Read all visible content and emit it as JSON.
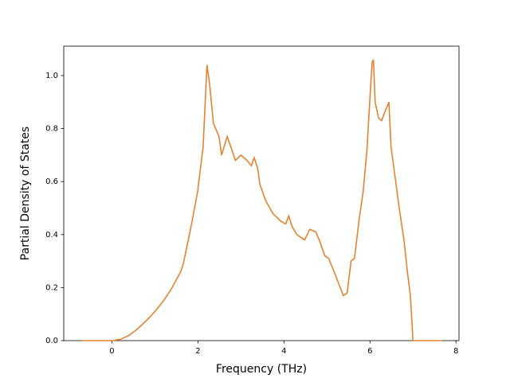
{
  "chart_data": {
    "type": "line",
    "xlabel": "Frequency (THz)",
    "ylabel": "Partial Density of States",
    "x": [
      -0.7,
      0,
      0.2,
      0.4,
      0.6,
      0.8,
      1.0,
      1.2,
      1.4,
      1.6,
      1.66,
      1.84,
      1.99,
      2.12,
      2.21,
      2.27,
      2.36,
      2.49,
      2.55,
      2.68,
      2.81,
      2.87,
      3.0,
      3.14,
      3.24,
      3.31,
      3.39,
      3.44,
      3.57,
      3.74,
      3.93,
      4.04,
      4.11,
      4.19,
      4.3,
      4.48,
      4.6,
      4.74,
      4.82,
      4.95,
      5.04,
      5.19,
      5.38,
      5.47,
      5.56,
      5.64,
      5.75,
      5.84,
      5.93,
      5.99,
      6.05,
      6.08,
      6.12,
      6.2,
      6.27,
      6.34,
      6.44,
      6.49,
      6.59,
      6.68,
      6.79,
      6.87,
      6.94,
      7.0,
      7.67
    ],
    "series": [
      {
        "color": "#e3832f",
        "values": [
          0,
          0,
          0.005,
          0.02,
          0.045,
          0.075,
          0.11,
          0.15,
          0.2,
          0.26,
          0.29,
          0.43,
          0.56,
          0.73,
          1.04,
          0.97,
          0.82,
          0.77,
          0.7,
          0.77,
          0.71,
          0.68,
          0.7,
          0.68,
          0.66,
          0.69,
          0.65,
          0.59,
          0.53,
          0.48,
          0.45,
          0.44,
          0.47,
          0.43,
          0.4,
          0.38,
          0.42,
          0.41,
          0.38,
          0.32,
          0.31,
          0.25,
          0.17,
          0.18,
          0.3,
          0.31,
          0.46,
          0.56,
          0.72,
          0.89,
          1.05,
          1.06,
          0.9,
          0.84,
          0.83,
          0.86,
          0.9,
          0.73,
          0.61,
          0.5,
          0.38,
          0.26,
          0.17,
          0,
          0
        ]
      }
    ],
    "xlim": [
      -1.12,
      8.07
    ],
    "ylim": [
      0,
      1.111
    ],
    "xticks": [
      0,
      2,
      4,
      6,
      8
    ],
    "yticks": [
      {
        "value": 0,
        "label": "0.0"
      },
      0.2,
      0.4,
      0.6,
      0.8,
      {
        "value": 1,
        "label": "1.0"
      }
    ]
  }
}
